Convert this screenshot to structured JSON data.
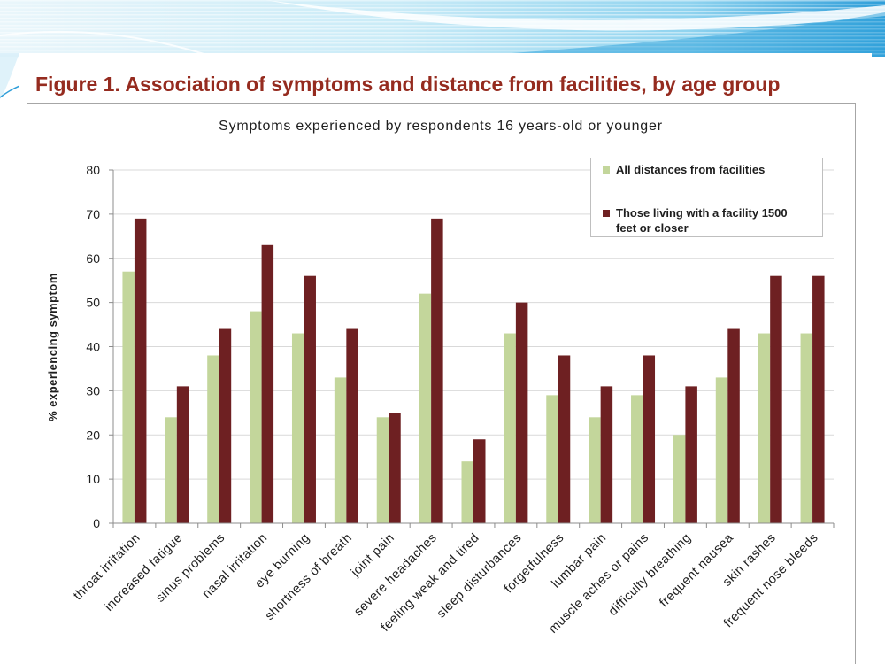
{
  "figure": {
    "title": "Figure 1. Association of symptoms and distance from facilities, by age group"
  },
  "colors": {
    "figure_title": "#952B1F",
    "gridline": "#D9D9D9"
  },
  "chart_data": {
    "type": "bar",
    "title": "Symptoms experienced by respondents 16 years-old or younger",
    "xlabel": "",
    "ylabel": "% experiencing symptom",
    "ylim": [
      0,
      80
    ],
    "yticks": [
      0,
      10,
      20,
      30,
      40,
      50,
      60,
      70,
      80
    ],
    "grid": true,
    "legend_position": "top-right",
    "categories": [
      "throat irritation",
      "increased fatigue",
      "sinus problems",
      "nasal irritation",
      "eye burning",
      "shortness of breath",
      "joint pain",
      "severe headaches",
      "feeling weak and tired",
      "sleep disturbances",
      "forgetfulness",
      "lumbar pain",
      "muscle aches or pains",
      "difficulty breathing",
      "frequent nausea",
      "skin rashes",
      "frequent nose bleeds"
    ],
    "series": [
      {
        "name": "All distances from facilities",
        "color": "#C3D69B",
        "values": [
          57,
          24,
          38,
          48,
          43,
          33,
          24,
          52,
          14,
          43,
          29,
          24,
          29,
          20,
          33,
          43,
          43
        ]
      },
      {
        "name": "Those living with a facility 1500 feet or closer",
        "color": "#6E2022",
        "values": [
          69,
          31,
          44,
          63,
          56,
          44,
          25,
          69,
          19,
          50,
          38,
          31,
          38,
          31,
          44,
          56,
          56
        ]
      }
    ]
  }
}
